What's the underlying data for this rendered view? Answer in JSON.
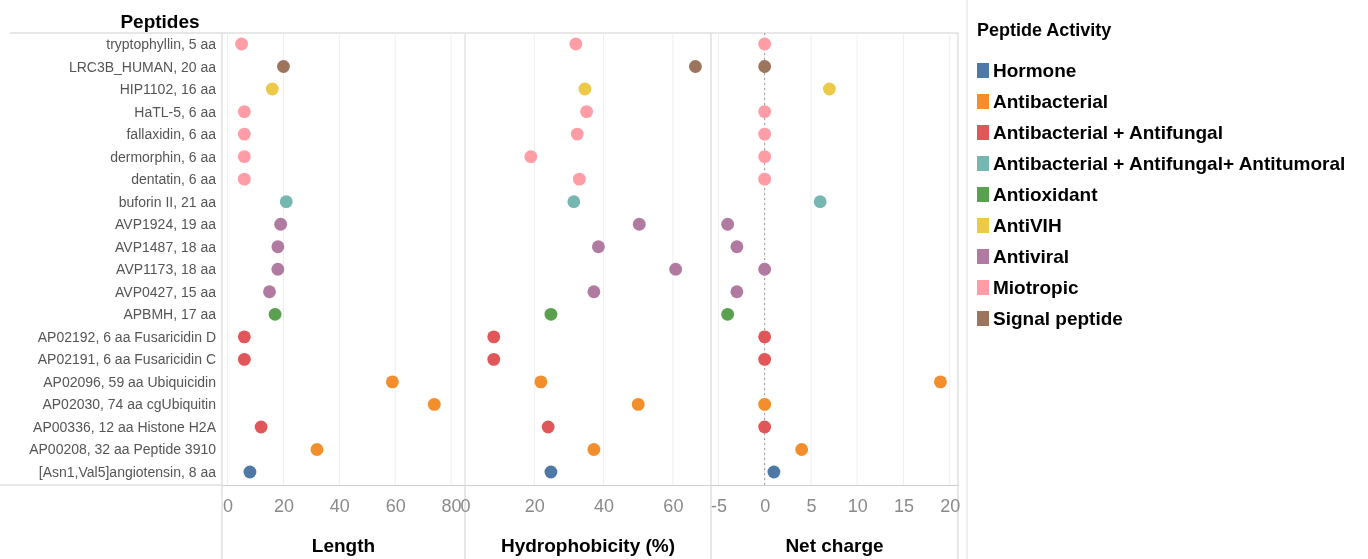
{
  "chart_data": [
    {
      "type": "scatter",
      "orientation": "horizontal",
      "ylabel": "Peptides",
      "xlabel": "Length",
      "categories": [
        "tryptophyllin, 5 aa",
        "LRC3B_HUMAN, 20 aa",
        "HIP1102, 16 aa",
        "HaTL-5, 6 aa",
        "fallaxidin, 6 aa",
        "dermorphin, 6 aa",
        "dentatin, 6 aa",
        "buforin II, 21 aa",
        "AVP1924, 19 aa",
        "AVP1487, 18 aa",
        "AVP1173, 18 aa",
        "AVP0427, 15 aa",
        "APBMH, 17 aa",
        "AP02192, 6 aa Fusaricidin D",
        "AP02191, 6 aa Fusaricidin C",
        "AP02096, 59 aa Ubiquicidin",
        "AP02030, 74 aa cgUbiquitin",
        "AP00336, 12 aa Histone H2A",
        "AP00208, 32 aa Peptide 3910",
        "[Asn1,Val5]angiotensin, 8 aa"
      ],
      "values": [
        5,
        20,
        16,
        6,
        6,
        6,
        6,
        21,
        19,
        18,
        18,
        15,
        17,
        6,
        6,
        59,
        74,
        12,
        32,
        8
      ],
      "colors": [
        "#ff9da7",
        "#9c755f",
        "#edc948",
        "#ff9da7",
        "#ff9da7",
        "#ff9da7",
        "#ff9da7",
        "#76b7b2",
        "#b07aa1",
        "#b07aa1",
        "#b07aa1",
        "#b07aa1",
        "#59a14f",
        "#e15759",
        "#e15759",
        "#f28e2b",
        "#f28e2b",
        "#e15759",
        "#f28e2b",
        "#4e79a7"
      ],
      "xlim": [
        -2,
        85
      ],
      "xticks": [
        0,
        20,
        40,
        60,
        80
      ],
      "grid": "x",
      "marker": "circle"
    },
    {
      "type": "scatter",
      "orientation": "horizontal",
      "xlabel": "Hydrophobicity (%)",
      "tick_labels": "x",
      "values": [
        32,
        66.5,
        34.6,
        35.1,
        32.4,
        19,
        33,
        31.4,
        50.3,
        38.5,
        60.8,
        37.2,
        24.8,
        8.3,
        8.3,
        21.9,
        50,
        24,
        37.2,
        24.8
      ],
      "colors": [
        "#ff9da7",
        "#9c755f",
        "#edc948",
        "#ff9da7",
        "#ff9da7",
        "#ff9da7",
        "#ff9da7",
        "#76b7b2",
        "#b07aa1",
        "#b07aa1",
        "#b07aa1",
        "#b07aa1",
        "#59a14f",
        "#e15759",
        "#e15759",
        "#f28e2b",
        "#f28e2b",
        "#e15759",
        "#f28e2b",
        "#4e79a7"
      ],
      "xlim": [
        0,
        71
      ],
      "xticks": [
        0,
        20,
        40,
        60
      ],
      "grid": "x",
      "marker": "circle"
    },
    {
      "type": "scatter",
      "orientation": "horizontal",
      "xlabel": "Net charge",
      "tick_labels": "x",
      "legend_title": "Peptide Activity",
      "legend": "right",
      "series": [
        {
          "name": "Hormone",
          "color": "#4e79a7",
          "values": [
            null,
            null,
            null,
            null,
            null,
            null,
            null,
            null,
            null,
            null,
            null,
            null,
            null,
            null,
            null,
            null,
            null,
            null,
            null,
            1
          ]
        },
        {
          "name": "Antibacterial",
          "color": "#f28e2b",
          "values": [
            null,
            null,
            null,
            null,
            null,
            null,
            null,
            null,
            null,
            null,
            null,
            null,
            null,
            null,
            null,
            19,
            0,
            null,
            4,
            null
          ]
        },
        {
          "name": "Antibacterial + Antifungal",
          "color": "#e15759",
          "values": [
            null,
            null,
            null,
            null,
            null,
            null,
            null,
            null,
            null,
            null,
            null,
            null,
            null,
            0,
            0,
            null,
            null,
            0,
            null,
            null
          ]
        },
        {
          "name": "Antibacterial + Antifungal+ Antitumoral",
          "color": "#76b7b2",
          "values": [
            null,
            null,
            null,
            null,
            null,
            null,
            null,
            6,
            null,
            null,
            null,
            null,
            null,
            null,
            null,
            null,
            null,
            null,
            null,
            null
          ]
        },
        {
          "name": "Antioxidant",
          "color": "#59a14f",
          "values": [
            null,
            null,
            null,
            null,
            null,
            null,
            null,
            null,
            null,
            null,
            null,
            null,
            -4,
            null,
            null,
            null,
            null,
            null,
            null,
            null
          ]
        },
        {
          "name": "AntiVIH",
          "color": "#edc948",
          "values": [
            null,
            null,
            7,
            null,
            null,
            null,
            null,
            null,
            null,
            null,
            null,
            null,
            null,
            null,
            null,
            null,
            null,
            null,
            null,
            null
          ]
        },
        {
          "name": "Antiviral",
          "color": "#b07aa1",
          "values": [
            null,
            null,
            null,
            null,
            null,
            null,
            null,
            null,
            -4,
            -3,
            0,
            -3,
            null,
            null,
            null,
            null,
            null,
            null,
            null,
            null
          ]
        },
        {
          "name": "Miotropic",
          "color": "#ff9da7",
          "values": [
            0,
            null,
            null,
            0,
            0,
            0,
            0,
            null,
            null,
            null,
            null,
            null,
            null,
            null,
            null,
            null,
            null,
            null,
            null,
            null
          ]
        },
        {
          "name": "Signal peptide",
          "color": "#9c755f",
          "values": [
            null,
            0,
            null,
            null,
            null,
            null,
            null,
            null,
            null,
            null,
            null,
            null,
            null,
            null,
            null,
            null,
            null,
            null,
            null,
            null
          ]
        }
      ],
      "ref_lines": [
        {
          "axis": "x",
          "value": 0,
          "color": "#999999",
          "line_style": "dotted"
        }
      ],
      "xlim": [
        -5.8,
        20.9
      ],
      "xticks": [
        -5,
        0,
        5,
        10,
        15,
        20
      ],
      "grid": "x",
      "marker": "circle"
    }
  ]
}
